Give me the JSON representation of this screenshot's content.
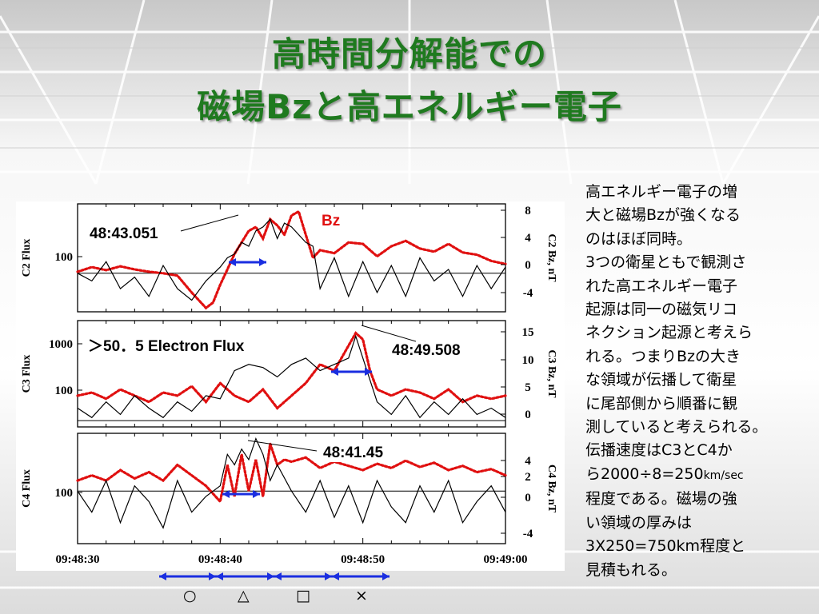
{
  "title": {
    "line1": "高時間分解能での",
    "line2": "磁場Bzと高エネルギー電子"
  },
  "description": {
    "lines": [
      "高エネルギー電子の増",
      "大と磁場Bzが強くなる",
      "のはほぼ同時。",
      "3つの衛星ともで観測さ",
      "れた高エネルギー電子",
      "起源は同一の磁気リコ",
      "ネクション起源と考えら",
      "れる。つまりBzの大き",
      "な領域が伝播して衛星",
      "に尾部側から順番に観",
      "測していると考えられる。",
      "伝播速度はC3とC4か"
    ],
    "speed_prefix": "ら2000÷8=250",
    "speed_unit": "km/sec",
    "tail_lines": [
      "程度である。磁場の強",
      "い領域の厚みは",
      "3X250=750km程度と",
      "見積もれる。"
    ]
  },
  "annotations": {
    "c2_time": "48:43.051",
    "c3_time": "48:49.508",
    "c4_time": "48:41.45",
    "bz_label": "Bz",
    "electron_label": "＞50．5  Electron  Flux"
  },
  "interval_symbols": [
    "○",
    "△",
    "□",
    "×"
  ],
  "colors": {
    "title": "#1f7a1f",
    "bz": "#e01010",
    "flux": "#000000",
    "arrow": "#1a2ee0"
  },
  "chart_data": {
    "type": "line",
    "x_tick_labels": [
      "09:48:30",
      "09:48:40",
      "09:48:50",
      "09:49:00"
    ],
    "x_range_seconds": [
      30,
      60
    ],
    "panels": [
      {
        "name": "C2",
        "left_axis_label": "C2 Flux",
        "right_axis_label": "C2 Bz, nT",
        "left_ticks": [
          "100"
        ],
        "right_ticks": [
          "8",
          "4",
          "0",
          "-4"
        ],
        "bz_range": [
          -5,
          9
        ],
        "series": [
          {
            "name": "Bz",
            "style": "red-dotted",
            "x": [
              30,
              31,
              32,
              33,
              34,
              35,
              36,
              37,
              38,
              39,
              39.5,
              40,
              40.5,
              41,
              41.5,
              42,
              42.5,
              43,
              43.5,
              44,
              44.5,
              45,
              45.5,
              46,
              46.5,
              47,
              48,
              49,
              50,
              51,
              52,
              53,
              54,
              55,
              56,
              57,
              58,
              59,
              60
            ],
            "y": [
              0.2,
              0.8,
              0.4,
              0.9,
              0.5,
              0.2,
              0,
              -0.3,
              -2.5,
              -4.5,
              -3.8,
              -1.5,
              0.5,
              2.5,
              4,
              5.5,
              6,
              4.5,
              7,
              6.2,
              5,
              7.5,
              8,
              5,
              2,
              3,
              2.6,
              4,
              3.8,
              2.2,
              3.5,
              4.2,
              3.2,
              2.8,
              3.8,
              2.7,
              2.4,
              1.6,
              1.2
            ]
          },
          {
            "name": "Flux",
            "style": "black-solid",
            "x": [
              30,
              31,
              32,
              33,
              34,
              35,
              36,
              37,
              38,
              39,
              40,
              40.5,
              41,
              41.5,
              42,
              42.5,
              43,
              43.5,
              44,
              44.5,
              45,
              46,
              46.5,
              47,
              48,
              49,
              50,
              51,
              52,
              53,
              54,
              55,
              56,
              57,
              58,
              59,
              60
            ],
            "y": [
              0,
              -1,
              1.5,
              -2,
              -0.5,
              -3,
              1,
              -2,
              -3.5,
              -1,
              0.8,
              2,
              2.5,
              4,
              3.5,
              5.5,
              6,
              7,
              4.5,
              6.5,
              6,
              4,
              3.5,
              -2,
              2,
              -3,
              1.5,
              -2.5,
              1,
              -3,
              2,
              -1,
              0.5,
              -3,
              1,
              -2,
              0.8
            ]
          }
        ]
      },
      {
        "name": "C3",
        "left_axis_label": "C3 Flux",
        "right_axis_label": "C3 Bz, nT",
        "left_ticks": [
          "1000",
          "100"
        ],
        "right_ticks": [
          "15",
          "10",
          "5",
          "0"
        ],
        "bz_range": [
          -1,
          16
        ],
        "series": [
          {
            "name": "Bz",
            "style": "red-dotted",
            "x": [
              30,
              31,
              32,
              33,
              34,
              35,
              36,
              37,
              38,
              39,
              40,
              41,
              42,
              43,
              44,
              45,
              46,
              47,
              48,
              49,
              49.5,
              50,
              50.5,
              51,
              52,
              53,
              54,
              55,
              56,
              57,
              58,
              59,
              60
            ],
            "y": [
              4,
              4.5,
              3.5,
              5,
              4,
              3,
              4.5,
              4,
              5.5,
              3,
              6,
              4,
              3,
              5,
              2,
              4,
              6,
              9,
              8,
              12,
              14,
              13,
              8,
              5,
              4,
              5,
              4.5,
              3.5,
              5,
              3,
              4,
              3.5,
              4
            ]
          },
          {
            "name": "Flux",
            "style": "black-solid",
            "x": [
              30,
              31,
              32,
              33,
              34,
              35,
              36,
              37,
              38,
              39,
              40,
              41,
              42,
              43,
              44,
              45,
              46,
              47,
              48,
              49,
              49.5,
              50,
              51,
              52,
              53,
              54,
              55,
              56,
              57,
              58,
              59,
              60
            ],
            "y": [
              2,
              0.5,
              3,
              1,
              4,
              2,
              0.5,
              3,
              1.5,
              4,
              3.5,
              8,
              9,
              8.5,
              7,
              9,
              10,
              8,
              9,
              10,
              13.5,
              10,
              3,
              1,
              4,
              0.5,
              3,
              1,
              3.5,
              1,
              2,
              0.5
            ]
          }
        ]
      },
      {
        "name": "C4",
        "left_axis_label": "C4 Flux",
        "right_axis_label": "C4 Bz, nT",
        "left_ticks": [
          "100"
        ],
        "right_ticks": [
          "4",
          "2",
          "0",
          "-4"
        ],
        "bz_range": [
          -5,
          5.5
        ],
        "series": [
          {
            "name": "Bz",
            "style": "red-dotted",
            "x": [
              30,
              31,
              32,
              33,
              34,
              35,
              36,
              37,
              38,
              39,
              40,
              40.5,
              41,
              41.5,
              42,
              42.5,
              43,
              43.5,
              44,
              44.5,
              45,
              46,
              47,
              48,
              49,
              50,
              51,
              52,
              53,
              54,
              55,
              56,
              57,
              58,
              59,
              60
            ],
            "y": [
              1,
              1.5,
              1,
              2,
              1.2,
              1.8,
              1,
              2.5,
              1.5,
              0.5,
              -1,
              2.5,
              -0.5,
              3.5,
              0,
              3,
              -0.5,
              4.5,
              2.5,
              3,
              2.8,
              3.2,
              2.2,
              2.8,
              2.4,
              2,
              2.6,
              2.2,
              2.9,
              2.3,
              2.7,
              2,
              2.4,
              1.8,
              2.1,
              1.5
            ]
          },
          {
            "name": "Flux",
            "style": "black-solid",
            "x": [
              30,
              31,
              32,
              33,
              34,
              35,
              36,
              37,
              38,
              39,
              40,
              40.5,
              41,
              41.5,
              42,
              42.5,
              43,
              43.5,
              44,
              45,
              46,
              47,
              48,
              49,
              50,
              51,
              52,
              53,
              54,
              55,
              56,
              57,
              58,
              59,
              60
            ],
            "y": [
              0,
              -2,
              1,
              -3,
              0.5,
              -1,
              -3.5,
              1,
              -2,
              -0.5,
              0.5,
              3.5,
              2.5,
              4,
              3,
              5,
              3.5,
              1,
              2.5,
              0,
              -2,
              1,
              -2.5,
              0.5,
              -3,
              1,
              -1.5,
              -3,
              0.5,
              -2,
              1,
              -3,
              -1,
              0.5,
              -2
            ]
          }
        ]
      }
    ]
  }
}
